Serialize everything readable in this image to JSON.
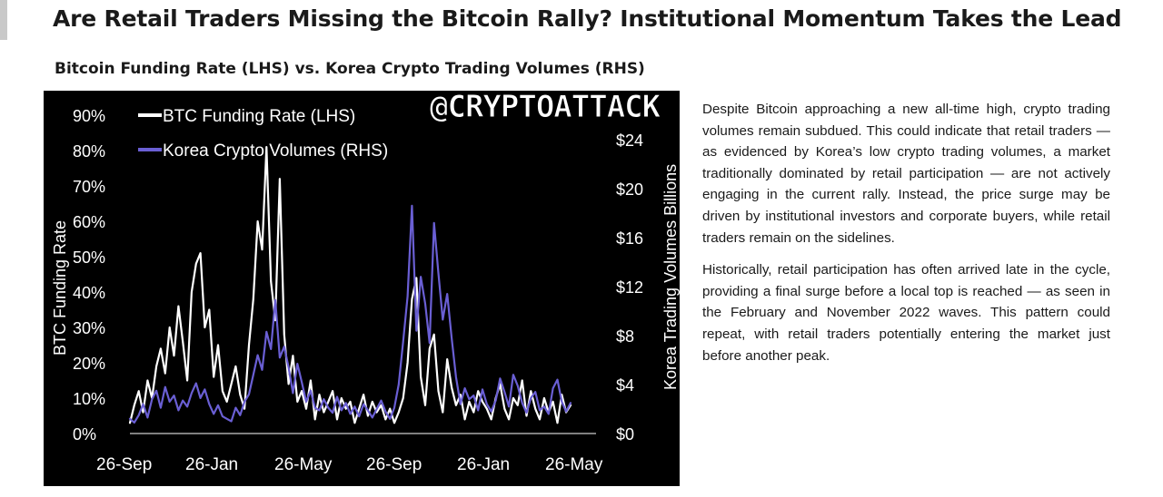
{
  "page": {
    "title": "Are Retail Traders Missing the Bitcoin Rally? Institutional Momentum Takes the Lead",
    "subtitle": "Bitcoin Funding Rate (LHS) vs. Korea Crypto Trading Volumes (RHS)",
    "watermark": "@CRYPTOATTACK",
    "paragraphs": [
      "Despite Bitcoin approaching a new all-time high, crypto trading volumes remain subdued. This could indicate that retail traders — as evidenced by Korea’s low crypto trading volumes, a market traditionally dominated by retail participation — are not actively engaging in the current rally. Instead, the price surge may be driven by institutional investors and corporate buyers, while retail traders remain on the sidelines.",
      "Historically, retail participation has often arrived late in the cycle, providing a final surge before a local top is reached — as seen in the February and November 2022 waves. This pattern could repeat, with retail traders potentially entering the market just before another peak."
    ]
  },
  "chart_data": {
    "type": "line",
    "xlabel": "",
    "ylabel": "BTC Funding Rate",
    "y2label": "Korea Trading  Volumes Billions",
    "x_tick_labels": [
      "26-Sep",
      "26-Jan",
      "26-May",
      "26-Sep",
      "26-Jan",
      "26-May"
    ],
    "y_tick_labels": [
      "0%",
      "10%",
      "20%",
      "30%",
      "40%",
      "50%",
      "60%",
      "70%",
      "80%",
      "90%"
    ],
    "y2_tick_labels": [
      "$0",
      "$4",
      "$8",
      "$12",
      "$16",
      "$20",
      "$24"
    ],
    "ylim": [
      0,
      90
    ],
    "y2lim": [
      0,
      26
    ],
    "xlim": [
      0,
      20
    ],
    "legend_position": "top-left",
    "background": "#000000",
    "series": [
      {
        "name": "BTC Funding Rate (LHS)",
        "axis": "left",
        "color": "#ffffff",
        "x": [
          0,
          0.2,
          0.4,
          0.6,
          0.8,
          1.0,
          1.2,
          1.4,
          1.6,
          1.8,
          2.0,
          2.2,
          2.4,
          2.6,
          2.8,
          3.0,
          3.2,
          3.4,
          3.6,
          3.8,
          4.0,
          4.2,
          4.4,
          4.6,
          4.8,
          5.0,
          5.2,
          5.4,
          5.6,
          5.8,
          6.0,
          6.2,
          6.4,
          6.6,
          6.8,
          7.0,
          7.2,
          7.4,
          7.6,
          7.8,
          8.0,
          8.2,
          8.4,
          8.6,
          8.8,
          9.0,
          9.2,
          9.4,
          9.6,
          9.8,
          10.0,
          10.2,
          10.4,
          10.6,
          10.8,
          11.0,
          11.2,
          11.4,
          11.6,
          11.8,
          12.0,
          12.2,
          12.4,
          12.6,
          12.8,
          13.0,
          13.2,
          13.4,
          13.6,
          13.8,
          14.0,
          14.2,
          14.4,
          14.6,
          14.8,
          15.0,
          15.2,
          15.4,
          15.6,
          15.8,
          16.0,
          16.2,
          16.4,
          16.6,
          16.8,
          17.0,
          17.2,
          17.4,
          17.6,
          17.8,
          18.0,
          18.2,
          18.4,
          18.6,
          18.8,
          19.0,
          19.2,
          19.4,
          19.6,
          19.8,
          20.0
        ],
        "y": [
          3,
          8,
          12,
          6,
          15,
          10,
          19,
          24,
          17,
          30,
          22,
          36,
          26,
          15,
          40,
          48,
          51,
          30,
          35,
          16,
          25,
          12,
          9,
          14,
          19,
          11,
          7,
          25,
          38,
          60,
          52,
          81,
          43,
          32,
          72,
          28,
          14,
          22,
          9,
          12,
          7,
          15,
          4,
          11,
          6,
          9,
          12,
          4,
          10,
          7,
          9,
          3,
          7,
          11,
          5,
          9,
          6,
          8,
          4,
          7,
          3,
          6,
          10,
          20,
          38,
          44,
          16,
          8,
          24,
          28,
          12,
          6,
          21,
          13,
          8,
          11,
          4,
          9,
          6,
          12,
          9,
          7,
          4,
          10,
          14,
          7,
          4,
          10,
          8,
          15,
          5,
          12,
          7,
          4,
          10,
          6,
          9,
          3,
          11,
          6,
          8
        ]
      },
      {
        "name": "Korea Crypto Volumes (RHS)",
        "axis": "right",
        "color": "#6a5fd4",
        "x": [
          0,
          0.2,
          0.4,
          0.6,
          0.8,
          1.0,
          1.2,
          1.4,
          1.6,
          1.8,
          2.0,
          2.2,
          2.4,
          2.6,
          2.8,
          3.0,
          3.2,
          3.4,
          3.6,
          3.8,
          4.0,
          4.2,
          4.4,
          4.6,
          4.8,
          5.0,
          5.2,
          5.4,
          5.6,
          5.8,
          6.0,
          6.2,
          6.4,
          6.6,
          6.8,
          7.0,
          7.2,
          7.4,
          7.6,
          7.8,
          8.0,
          8.2,
          8.4,
          8.6,
          8.8,
          9.0,
          9.2,
          9.4,
          9.6,
          9.8,
          10.0,
          10.2,
          10.4,
          10.6,
          10.8,
          11.0,
          11.2,
          11.4,
          11.6,
          11.8,
          12.0,
          12.2,
          12.4,
          12.6,
          12.8,
          13.0,
          13.2,
          13.4,
          13.6,
          13.8,
          14.0,
          14.2,
          14.4,
          14.6,
          14.8,
          15.0,
          15.2,
          15.4,
          15.6,
          15.8,
          16.0,
          16.2,
          16.4,
          16.6,
          16.8,
          17.0,
          17.2,
          17.4,
          17.6,
          17.8,
          18.0,
          18.2,
          18.4,
          18.6,
          18.8,
          19.0,
          19.2,
          19.4,
          19.6,
          19.8,
          20.0
        ],
        "y": [
          1.2,
          0.9,
          1.5,
          2.4,
          1.3,
          2.8,
          3.5,
          2.1,
          3.8,
          2.6,
          3.1,
          1.9,
          2.7,
          2.2,
          3.3,
          4.1,
          2.9,
          3.6,
          2.4,
          1.6,
          2.3,
          1.4,
          1.2,
          1.0,
          2.1,
          1.5,
          2.6,
          3.2,
          4.8,
          6.4,
          5.2,
          8.3,
          6.9,
          10.9,
          6.2,
          7.1,
          5.4,
          3.3,
          5.7,
          4.2,
          2.6,
          3.5,
          2.1,
          1.9,
          2.8,
          2.1,
          1.7,
          3.0,
          1.9,
          2.5,
          1.6,
          2.2,
          1.4,
          2.4,
          1.9,
          1.3,
          2.0,
          2.7,
          1.8,
          1.2,
          2.1,
          4.0,
          7.5,
          11.2,
          18.6,
          8.4,
          12.8,
          10.6,
          7.4,
          17.2,
          13.1,
          9.3,
          11.4,
          7.8,
          4.6,
          2.4,
          3.7,
          2.8,
          3.1,
          1.9,
          3.6,
          2.4,
          1.8,
          2.7,
          4.5,
          3.4,
          2.2,
          4.8,
          3.9,
          2.5,
          1.7,
          2.9,
          3.4,
          1.9,
          2.2,
          1.6,
          3.7,
          4.4,
          2.6,
          1.8,
          2.5
        ]
      }
    ]
  }
}
